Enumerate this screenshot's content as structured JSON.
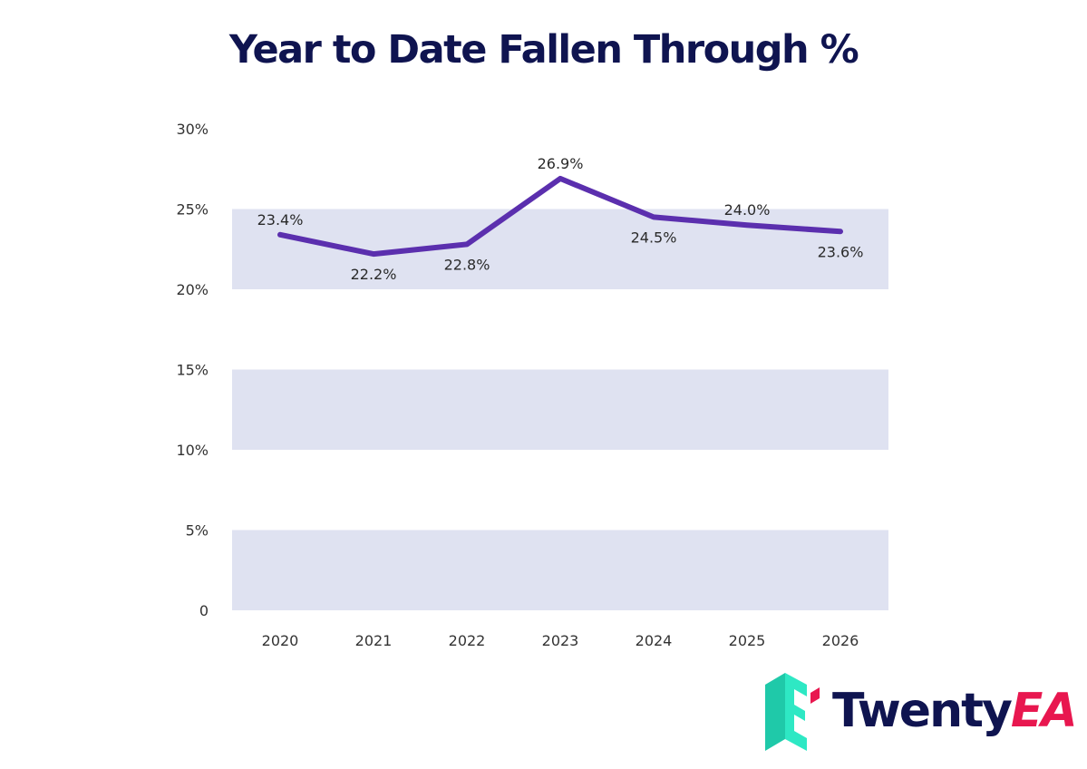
{
  "chart_data": {
    "type": "line",
    "title": "Year to Date Fallen Through %",
    "xlabel": "",
    "ylabel": "",
    "categories": [
      "2020",
      "2021",
      "2022",
      "2023",
      "2024",
      "2025",
      "2026"
    ],
    "series": [
      {
        "name": "Fallen Through %",
        "values": [
          23.4,
          22.2,
          22.8,
          26.9,
          24.5,
          24.0,
          23.6
        ],
        "labels": [
          "23.4%",
          "22.2%",
          "22.8%",
          "26.9%",
          "24.5%",
          "24.0%",
          "23.6%"
        ],
        "label_positions": [
          "above",
          "below",
          "below",
          "above",
          "below",
          "above",
          "below"
        ]
      }
    ],
    "ylim": [
      0,
      30
    ],
    "yticks": [
      0,
      5,
      10,
      15,
      20,
      25,
      30
    ],
    "ytick_labels": [
      "0",
      "5%",
      "10%",
      "15%",
      "20%",
      "25%",
      "30%"
    ],
    "bands": [
      [
        0,
        5
      ],
      [
        10,
        15
      ],
      [
        20,
        25
      ]
    ],
    "grid": false,
    "colors": {
      "line": "#5b2fae",
      "band": "#dfe2f1",
      "title": "#0f1450"
    }
  },
  "logo": {
    "word_a": "Twenty",
    "word_b": "EA",
    "colors": {
      "navy": "#0f1450",
      "pink": "#e8174f",
      "teal": "#2ee8c4"
    }
  }
}
